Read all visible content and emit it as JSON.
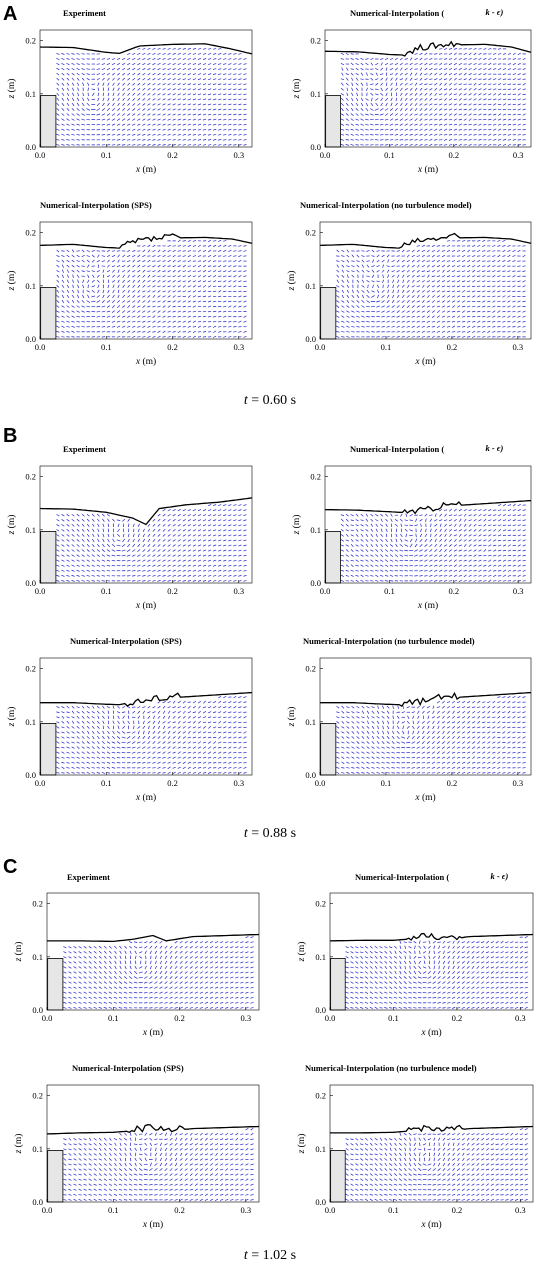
{
  "figure": {
    "groups": [
      {
        "letter": "A",
        "caption": "t = 0.60 s"
      },
      {
        "letter": "B",
        "caption": "t = 0.88 s"
      },
      {
        "letter": "C",
        "caption": "t = 1.02 s"
      }
    ]
  },
  "chart_data": [
    {
      "type": "quiver",
      "group": "A",
      "title": "Experiment",
      "xlabel": "x (m)",
      "ylabel": "z (m)",
      "xlim": [
        0,
        0.32
      ],
      "ylim": [
        0,
        0.22
      ],
      "xticks": [
        "0.0",
        "0.1",
        "0.2",
        "0.3"
      ],
      "yticks": [
        "0.0",
        "0.1",
        "0.2"
      ],
      "vortex": [
        0.08,
        0.07
      ],
      "surface": {
        "x": [
          0,
          0.05,
          0.1,
          0.12,
          0.15,
          0.2,
          0.25,
          0.29,
          0.32
        ],
        "z": [
          0.188,
          0.187,
          0.178,
          0.176,
          0.19,
          0.193,
          0.194,
          0.184,
          0.175
        ]
      },
      "noise": false
    },
    {
      "type": "quiver",
      "group": "A",
      "title": "Numerical-Interpolation (",
      "title_suffix": "k - ϵ)",
      "xlabel": "x (m)",
      "ylabel": "z (m)",
      "xlim": [
        0,
        0.32
      ],
      "ylim": [
        0,
        0.22
      ],
      "xticks": [
        "0.0",
        "0.1",
        "0.2",
        "0.3"
      ],
      "yticks": [
        "0.0",
        "0.1",
        "0.2"
      ],
      "vortex": [
        0.08,
        0.07
      ],
      "surface": {
        "x": [
          0,
          0.05,
          0.1,
          0.12,
          0.15,
          0.2,
          0.25,
          0.29,
          0.32
        ],
        "z": [
          0.18,
          0.179,
          0.174,
          0.173,
          0.185,
          0.192,
          0.193,
          0.188,
          0.178
        ]
      },
      "noise": true
    },
    {
      "type": "quiver",
      "group": "A",
      "title": "Numerical-Interpolation (SPS)",
      "xlabel": "x (m)",
      "ylabel": "z (m)",
      "xlim": [
        0,
        0.32
      ],
      "ylim": [
        0,
        0.22
      ],
      "xticks": [
        "0.0",
        "0.1",
        "0.2",
        "0.3"
      ],
      "yticks": [
        "0.0",
        "0.1",
        "0.2"
      ],
      "vortex": [
        0.08,
        0.07
      ],
      "surface": {
        "x": [
          0,
          0.05,
          0.1,
          0.12,
          0.15,
          0.2,
          0.25,
          0.29,
          0.32
        ],
        "z": [
          0.176,
          0.178,
          0.172,
          0.171,
          0.182,
          0.19,
          0.191,
          0.188,
          0.18
        ]
      },
      "noise": true
    },
    {
      "type": "quiver",
      "group": "A",
      "title": "Numerical-Interpolation (no turbulence model)",
      "xlabel": "x (m)",
      "ylabel": "z (m)",
      "xlim": [
        0,
        0.32
      ],
      "ylim": [
        0,
        0.22
      ],
      "xticks": [
        "0.0",
        "0.1",
        "0.2",
        "0.3"
      ],
      "yticks": [
        "0.0",
        "0.1",
        "0.2"
      ],
      "vortex": [
        0.08,
        0.07
      ],
      "surface": {
        "x": [
          0,
          0.05,
          0.1,
          0.12,
          0.15,
          0.2,
          0.25,
          0.29,
          0.32
        ],
        "z": [
          0.176,
          0.178,
          0.172,
          0.171,
          0.182,
          0.19,
          0.191,
          0.188,
          0.18
        ]
      },
      "noise": true
    },
    {
      "type": "quiver",
      "group": "B",
      "title": "Experiment",
      "xlabel": "x (m)",
      "ylabel": "z (m)",
      "xlim": [
        0,
        0.32
      ],
      "ylim": [
        0,
        0.22
      ],
      "xticks": [
        "0.0",
        "0.1",
        "0.2",
        "0.3"
      ],
      "yticks": [
        "0.0",
        "0.1",
        "0.2"
      ],
      "vortex": [
        0.12,
        0.065
      ],
      "surface": {
        "x": [
          0,
          0.05,
          0.1,
          0.14,
          0.16,
          0.18,
          0.22,
          0.27,
          0.32
        ],
        "z": [
          0.14,
          0.139,
          0.133,
          0.122,
          0.11,
          0.14,
          0.147,
          0.152,
          0.16
        ]
      },
      "noise": false
    },
    {
      "type": "quiver",
      "group": "B",
      "title": "Numerical-Interpolation (",
      "title_suffix": "k - ϵ)",
      "xlabel": "x (m)",
      "ylabel": "z (m)",
      "xlim": [
        0,
        0.32
      ],
      "ylim": [
        0,
        0.22
      ],
      "xticks": [
        "0.0",
        "0.1",
        "0.2",
        "0.3"
      ],
      "yticks": [
        "0.0",
        "0.1",
        "0.2"
      ],
      "vortex": [
        0.13,
        0.065
      ],
      "surface": {
        "x": [
          0,
          0.05,
          0.1,
          0.13,
          0.16,
          0.18,
          0.22,
          0.27,
          0.32
        ],
        "z": [
          0.138,
          0.137,
          0.134,
          0.132,
          0.136,
          0.143,
          0.147,
          0.151,
          0.155
        ]
      },
      "noise": true
    },
    {
      "type": "quiver",
      "group": "B",
      "title": "Numerical-Interpolation (SPS)",
      "xlabel": "x (m)",
      "ylabel": "z (m)",
      "xlim": [
        0,
        0.32
      ],
      "ylim": [
        0,
        0.22
      ],
      "xticks": [
        "0.0",
        "0.1",
        "0.2",
        "0.3"
      ],
      "yticks": [
        "0.0",
        "0.1",
        "0.2"
      ],
      "vortex": [
        0.13,
        0.065
      ],
      "surface": {
        "x": [
          0,
          0.05,
          0.1,
          0.13,
          0.16,
          0.18,
          0.22,
          0.27,
          0.32
        ],
        "z": [
          0.136,
          0.136,
          0.133,
          0.132,
          0.137,
          0.143,
          0.147,
          0.151,
          0.155
        ]
      },
      "noise": true
    },
    {
      "type": "quiver",
      "group": "B",
      "title": "Numerical-Interpolation (no turbulence model)",
      "xlabel": "x (m)",
      "ylabel": "z (m)",
      "xlim": [
        0,
        0.32
      ],
      "ylim": [
        0,
        0.22
      ],
      "xticks": [
        "0.0",
        "0.1",
        "0.2",
        "0.3"
      ],
      "yticks": [
        "0.0",
        "0.1",
        "0.2"
      ],
      "vortex": [
        0.13,
        0.065
      ],
      "surface": {
        "x": [
          0,
          0.05,
          0.1,
          0.13,
          0.16,
          0.18,
          0.22,
          0.27,
          0.32
        ],
        "z": [
          0.136,
          0.136,
          0.133,
          0.132,
          0.137,
          0.143,
          0.147,
          0.151,
          0.155
        ]
      },
      "noise": true
    },
    {
      "type": "quiver",
      "group": "C",
      "title": "Experiment",
      "xlabel": "x (m)",
      "ylabel": "z (m)",
      "xlim": [
        0,
        0.32
      ],
      "ylim": [
        0,
        0.22
      ],
      "xticks": [
        "0.0",
        "0.1",
        "0.2",
        "0.3"
      ],
      "yticks": [
        "0.0",
        "0.1",
        "0.2"
      ],
      "vortex": [
        0.14,
        0.06
      ],
      "surface": {
        "x": [
          0,
          0.05,
          0.1,
          0.13,
          0.16,
          0.18,
          0.22,
          0.27,
          0.32
        ],
        "z": [
          0.13,
          0.13,
          0.129,
          0.133,
          0.14,
          0.13,
          0.138,
          0.14,
          0.142
        ]
      },
      "noise": false
    },
    {
      "type": "quiver",
      "group": "C",
      "title": "Numerical-Interpolation (",
      "title_suffix": "k - ϵ)",
      "xlabel": "x (m)",
      "ylabel": "z (m)",
      "xlim": [
        0,
        0.32
      ],
      "ylim": [
        0,
        0.22
      ],
      "xticks": [
        "0.0",
        "0.1",
        "0.2",
        "0.3"
      ],
      "yticks": [
        "0.0",
        "0.1",
        "0.2"
      ],
      "vortex": [
        0.15,
        0.06
      ],
      "surface": {
        "x": [
          0,
          0.05,
          0.1,
          0.13,
          0.16,
          0.18,
          0.22,
          0.27,
          0.32
        ],
        "z": [
          0.13,
          0.131,
          0.131,
          0.134,
          0.138,
          0.132,
          0.138,
          0.14,
          0.142
        ]
      },
      "noise": true
    },
    {
      "type": "quiver",
      "group": "C",
      "title": "Numerical-Interpolation (SPS)",
      "xlabel": "x (m)",
      "ylabel": "z (m)",
      "xlim": [
        0,
        0.32
      ],
      "ylim": [
        0,
        0.22
      ],
      "xticks": [
        "0.0",
        "0.1",
        "0.2",
        "0.3"
      ],
      "yticks": [
        "0.0",
        "0.1",
        "0.2"
      ],
      "vortex": [
        0.15,
        0.06
      ],
      "surface": {
        "x": [
          0,
          0.05,
          0.1,
          0.13,
          0.16,
          0.18,
          0.22,
          0.27,
          0.32
        ],
        "z": [
          0.128,
          0.13,
          0.131,
          0.134,
          0.138,
          0.132,
          0.138,
          0.14,
          0.142
        ]
      },
      "noise": true
    },
    {
      "type": "quiver",
      "group": "C",
      "title": "Numerical-Interpolation (no turbulence model)",
      "xlabel": "x (m)",
      "ylabel": "z (m)",
      "xlim": [
        0,
        0.32
      ],
      "ylim": [
        0,
        0.22
      ],
      "xticks": [
        "0.0",
        "0.1",
        "0.2",
        "0.3"
      ],
      "yticks": [
        "0.0",
        "0.1",
        "0.2"
      ],
      "vortex": [
        0.15,
        0.06
      ],
      "surface": {
        "x": [
          0,
          0.05,
          0.1,
          0.13,
          0.16,
          0.18,
          0.22,
          0.27,
          0.32
        ],
        "z": [
          0.13,
          0.13,
          0.131,
          0.134,
          0.138,
          0.132,
          0.138,
          0.14,
          0.142
        ]
      },
      "noise": true
    }
  ],
  "colors": {
    "vectors": "#2222cc",
    "surface": "#000000",
    "block": "#e6e6e6",
    "text": "#000000"
  }
}
